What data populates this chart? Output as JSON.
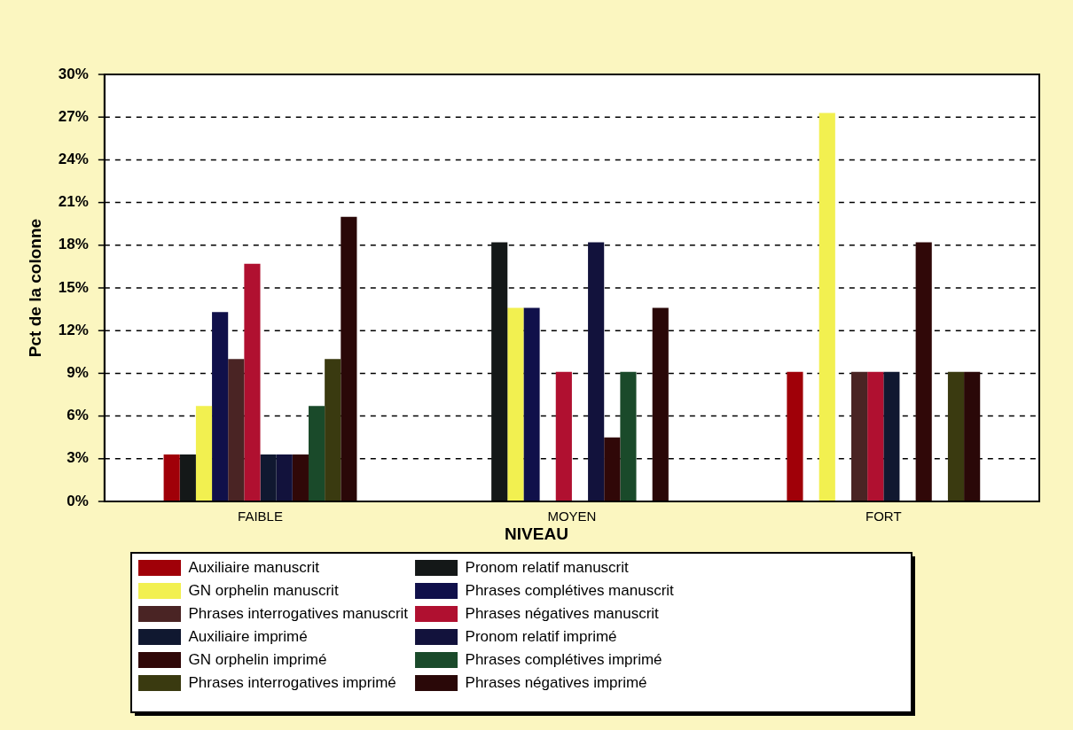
{
  "chart_data": {
    "type": "bar",
    "xlabel": "NIVEAU",
    "ylabel": "Pct de la colonne",
    "categories": [
      "FAIBLE",
      "MOYEN",
      "FORT"
    ],
    "ylim": [
      0,
      30
    ],
    "yticks": [
      {
        "value": 0,
        "label": "0%"
      },
      {
        "value": 3,
        "label": "3%"
      },
      {
        "value": 6,
        "label": "6%"
      },
      {
        "value": 9,
        "label": "9%"
      },
      {
        "value": 12,
        "label": "12%"
      },
      {
        "value": 15,
        "label": "15%"
      },
      {
        "value": 18,
        "label": "18%"
      },
      {
        "value": 21,
        "label": "21%"
      },
      {
        "value": 24,
        "label": "24%"
      },
      {
        "value": 27,
        "label": "27%"
      },
      {
        "value": 30,
        "label": "30%"
      }
    ],
    "grid": "y",
    "line_style": "dashed",
    "legend": "bottom",
    "series": [
      {
        "name": "Auxiliaire manuscrit",
        "color": "#a00008",
        "values": [
          3.3,
          0,
          9.1
        ]
      },
      {
        "name": "Pronom relatif manuscrit",
        "color": "#141818",
        "values": [
          3.3,
          18.2,
          0
        ]
      },
      {
        "name": "GN orphelin manuscrit",
        "color": "#f2f050",
        "values": [
          6.7,
          13.6,
          27.3
        ]
      },
      {
        "name": "Phrases complétives manuscrit",
        "color": "#10104a",
        "values": [
          13.3,
          13.6,
          0
        ]
      },
      {
        "name": "Phrases interrogatives manuscrit",
        "color": "#4a2424",
        "values": [
          10,
          0,
          9.1
        ]
      },
      {
        "name": "Phrases négatives manuscrit",
        "color": "#b01030",
        "values": [
          16.7,
          9.1,
          9.1
        ]
      },
      {
        "name": "Auxiliaire imprimé",
        "color": "#101830",
        "values": [
          3.3,
          0,
          9.1
        ]
      },
      {
        "name": "Pronom relatif imprimé",
        "color": "#12123c",
        "values": [
          3.3,
          18.2,
          0
        ]
      },
      {
        "name": "GN orphelin imprimé",
        "color": "#300808",
        "values": [
          3.3,
          4.5,
          18.2
        ]
      },
      {
        "name": "Phrases complétives imprimé",
        "color": "#1a4a2a",
        "values": [
          6.7,
          9.1,
          0
        ]
      },
      {
        "name": "Phrases interrogatives imprimé",
        "color": "#3a3a10",
        "values": [
          10,
          0,
          9.1
        ]
      },
      {
        "name": "Phrases négatives imprimé",
        "color": "#2a0808",
        "values": [
          20,
          13.6,
          9.1
        ]
      }
    ]
  }
}
